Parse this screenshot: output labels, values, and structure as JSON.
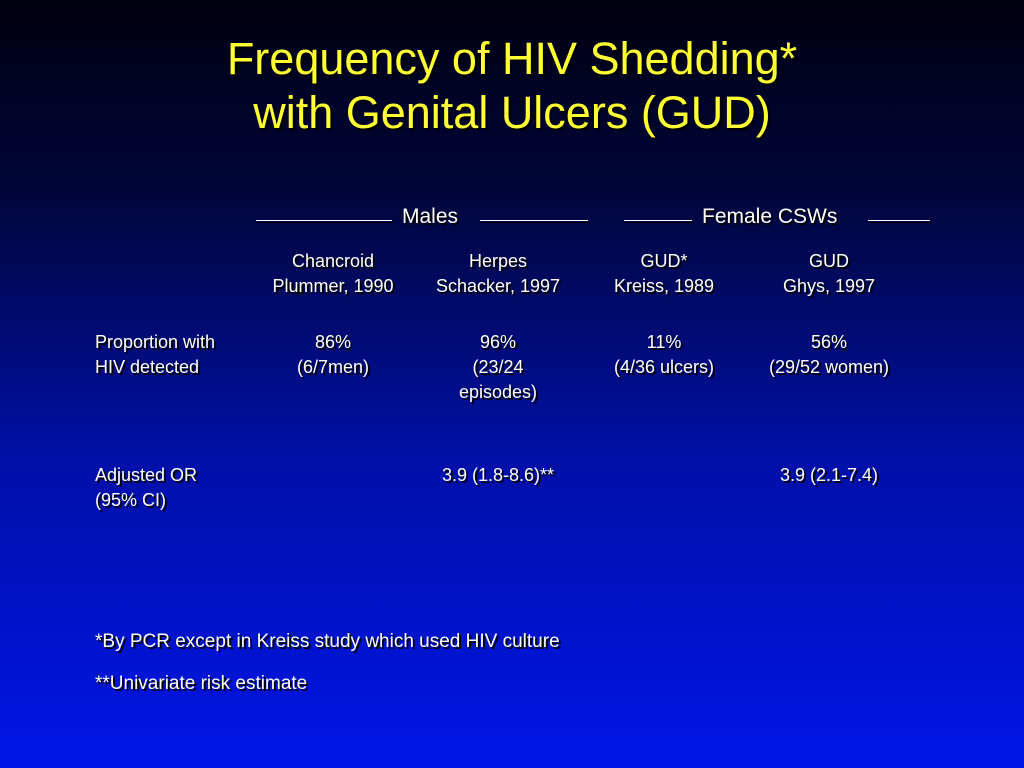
{
  "slide": {
    "title_line1": "Frequency of HIV Shedding*",
    "title_line2": "with Genital Ulcers (GUD)"
  },
  "groups": {
    "males": "Males",
    "females": "Female CSWs"
  },
  "columns": [
    {
      "line1": "Chancroid",
      "line2": "Plummer, 1990"
    },
    {
      "line1": "Herpes",
      "line2": "Schacker, 1997"
    },
    {
      "line1": "GUD*",
      "line2": "Kreiss, 1989"
    },
    {
      "line1": "GUD",
      "line2": "Ghys, 1997"
    }
  ],
  "rows": {
    "proportion": {
      "label_line1": "Proportion with",
      "label_line2": "HIV detected",
      "cells": [
        {
          "line1": "86%",
          "line2": "(6/7men)",
          "line3": ""
        },
        {
          "line1": "96%",
          "line2": "(23/24",
          "line3": "episodes)"
        },
        {
          "line1": "11%",
          "line2": "(4/36 ulcers)",
          "line3": ""
        },
        {
          "line1": "56%",
          "line2": "(29/52 women)",
          "line3": ""
        }
      ]
    },
    "adjusted_or": {
      "label_line1": "Adjusted OR",
      "label_line2": "(95% CI)",
      "cells": [
        "",
        "3.9 (1.8-8.6)**",
        "",
        "3.9 (2.1-7.4)"
      ]
    }
  },
  "footnotes": {
    "note1": "*By PCR except in Kreiss study which used HIV culture",
    "note2": "**Univariate risk estimate"
  }
}
